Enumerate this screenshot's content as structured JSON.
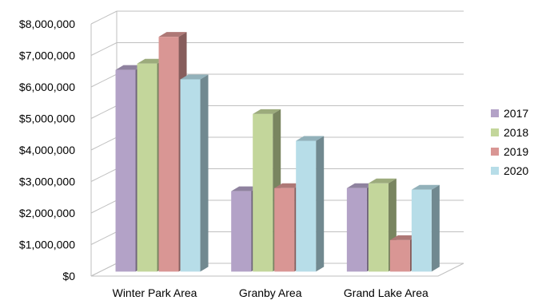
{
  "chart_data": {
    "type": "bar",
    "title": "",
    "xlabel": "",
    "ylabel": "",
    "categories": [
      "Winter Park Area",
      "Granby Area",
      "Grand Lake Area"
    ],
    "series": [
      {
        "name": "2017",
        "color": "#b3a2c7",
        "values": [
          6400000,
          2550000,
          2650000
        ]
      },
      {
        "name": "2018",
        "color": "#c3d69b",
        "values": [
          6600000,
          5000000,
          2800000
        ]
      },
      {
        "name": "2019",
        "color": "#d99694",
        "values": [
          7450000,
          2650000,
          1000000
        ]
      },
      {
        "name": "2020",
        "color": "#b7dde8",
        "values": [
          6100000,
          4150000,
          2600000
        ]
      }
    ],
    "ylim": [
      0,
      8000000
    ],
    "yticks": [
      "$0",
      "$1,000,000",
      "$2,000,000",
      "$3,000,000",
      "$4,000,000",
      "$5,000,000",
      "$6,000,000",
      "$7,000,000",
      "$8,000,000"
    ],
    "grid": true,
    "legend_position": "right",
    "style": "3d-clustered-column"
  }
}
